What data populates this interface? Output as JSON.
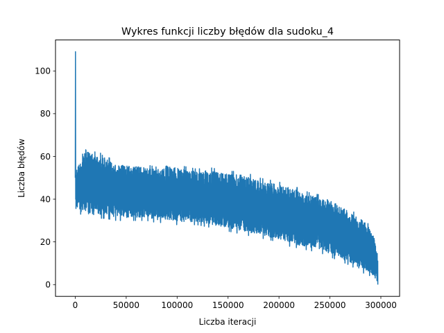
{
  "chart_data": {
    "type": "line",
    "title": "Wykres funkcji liczby błędów dla sudoku_4",
    "xlabel": "Liczba iteracji",
    "ylabel": "Liczba błędów",
    "xlim": [
      -19400,
      318400
    ],
    "ylim": [
      -5.5,
      114.5
    ],
    "xticks": [
      0,
      50000,
      100000,
      150000,
      200000,
      250000,
      300000
    ],
    "yticks": [
      0,
      20,
      40,
      60,
      80,
      100
    ],
    "grid": false,
    "legend": "none",
    "line_color": "#1f77b4",
    "series": [
      {
        "x": [
          0,
          300,
          600,
          1000,
          1500,
          2500,
          5000,
          10000,
          15000,
          20000,
          25000,
          30000,
          40000,
          50000,
          60000,
          70000,
          80000,
          90000,
          100000,
          110000,
          120000,
          130000,
          140000,
          150000,
          160000,
          170000,
          180000,
          190000,
          200000,
          210000,
          220000,
          230000,
          240000,
          250000,
          260000,
          270000,
          280000,
          285000,
          290000,
          293000,
          296000,
          297000
        ],
        "upper": [
          50,
          109,
          56,
          52,
          56,
          57,
          58,
          65,
          63,
          62,
          64,
          60,
          58,
          57,
          57,
          56,
          55,
          57,
          56,
          55,
          54,
          55,
          54,
          53,
          53,
          52,
          50,
          49,
          48,
          47,
          45,
          43,
          42,
          41,
          38,
          35,
          32,
          30,
          27,
          25,
          15,
          14
        ],
        "lower": [
          36,
          40,
          34,
          36,
          35,
          34,
          33,
          32,
          31,
          31,
          31,
          31,
          30,
          30,
          30,
          30,
          29,
          29,
          28,
          28,
          28,
          27,
          26,
          25,
          24,
          23,
          22,
          21,
          20,
          18,
          17,
          16,
          15,
          13,
          11,
          9,
          6,
          5,
          4,
          3,
          1,
          0
        ]
      }
    ]
  }
}
